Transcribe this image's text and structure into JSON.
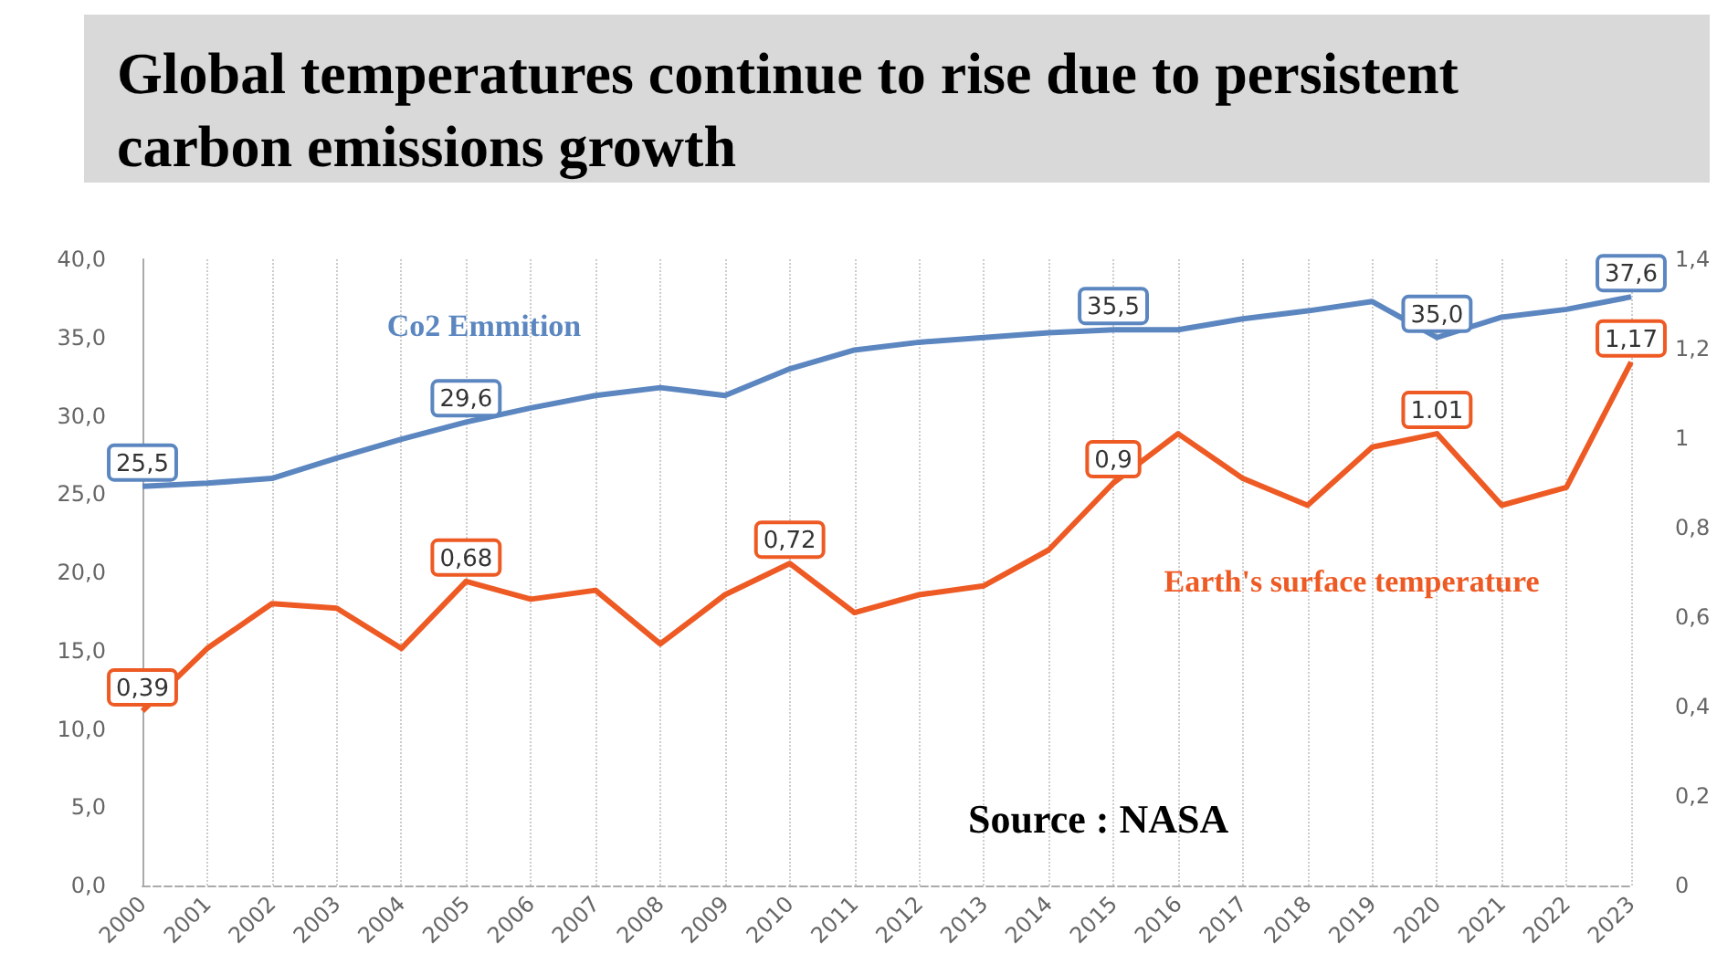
{
  "chart_data": {
    "type": "line",
    "title": "Global temperatures continue to rise due to persistent carbon emissions growth",
    "categories": [
      "2000",
      "2001",
      "2002",
      "2003",
      "2004",
      "2005",
      "2006",
      "2007",
      "2008",
      "2009",
      "2010",
      "2011",
      "2012",
      "2013",
      "2014",
      "2015",
      "2016",
      "2017",
      "2018",
      "2019",
      "2020",
      "2021",
      "2022",
      "2023"
    ],
    "series": [
      {
        "name": "Co2 Emmition",
        "color": "#5b86c0",
        "values": [
          25.5,
          25.7,
          26.0,
          27.3,
          28.5,
          29.6,
          30.5,
          31.3,
          31.8,
          31.3,
          33.0,
          34.2,
          34.7,
          35.0,
          35.3,
          35.5,
          35.5,
          36.2,
          36.7,
          37.3,
          35.0,
          36.3,
          36.8,
          37.6
        ],
        "value_labels": [
          "25,5",
          null,
          null,
          null,
          null,
          "29,6",
          null,
          null,
          null,
          null,
          null,
          null,
          null,
          null,
          null,
          "35,5",
          null,
          null,
          null,
          null,
          "35,0",
          null,
          null,
          "37,6"
        ]
      },
      {
        "name": "Earth's surface temperature",
        "color": "#ee5a24",
        "axis": "y2",
        "values": [
          0.39,
          0.53,
          0.63,
          0.62,
          0.53,
          0.68,
          0.64,
          0.66,
          0.54,
          0.65,
          0.72,
          0.61,
          0.65,
          0.67,
          0.75,
          0.9,
          1.01,
          0.91,
          0.85,
          0.98,
          1.01,
          0.85,
          0.89,
          1.17
        ],
        "value_labels": [
          "0,39",
          null,
          null,
          null,
          null,
          "0,68",
          null,
          null,
          null,
          null,
          "0,72",
          null,
          null,
          null,
          null,
          "0,9",
          null,
          null,
          null,
          null,
          "1.01",
          null,
          null,
          "1,17"
        ]
      }
    ],
    "ylim": [
      0,
      40
    ],
    "yticks": [
      {
        "value": 0,
        "label": "0,0"
      },
      {
        "value": 5,
        "label": "5,0"
      },
      {
        "value": 10,
        "label": "10,0"
      },
      {
        "value": 15,
        "label": "15,0"
      },
      {
        "value": 20,
        "label": "20,0"
      },
      {
        "value": 25,
        "label": "25,0"
      },
      {
        "value": 30,
        "label": "30,0"
      },
      {
        "value": 35,
        "label": "35,0"
      },
      {
        "value": 40,
        "label": "40,0"
      }
    ],
    "y2lim": [
      0,
      1.4
    ],
    "y2ticks": [
      0,
      {
        "value": 0.2,
        "label": "0,2"
      },
      {
        "value": 0.4,
        "label": "0,4"
      },
      {
        "value": 0.6,
        "label": "0,6"
      },
      {
        "value": 0.8,
        "label": "0,8"
      },
      1,
      {
        "value": 1.2,
        "label": "1,2"
      },
      {
        "value": 1.4,
        "label": "1,4"
      }
    ],
    "annotations": [
      "Source : NASA"
    ],
    "grid": "x",
    "line_style": "solid"
  }
}
